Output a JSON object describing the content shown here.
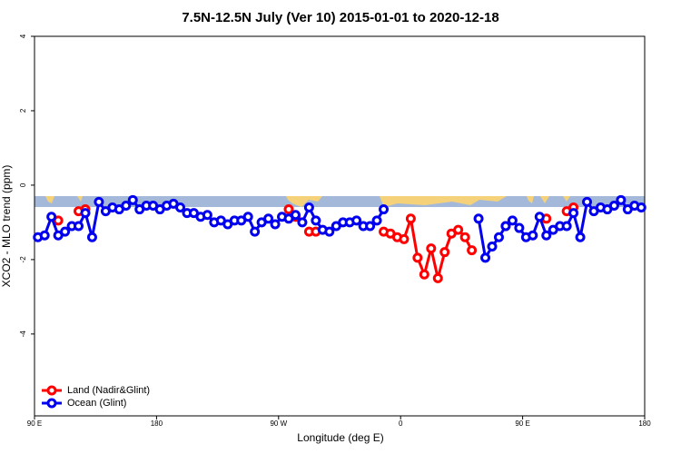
{
  "chart_data": {
    "type": "line",
    "title": "7.5N-12.5N July (Ver 10)   2015-01-01 to 2020-12-18",
    "xlabel": "Longitude (deg E)",
    "ylabel": "XCO2 - MLO trend (ppm)",
    "xlim": [
      90,
      540
    ],
    "xticks": [
      {
        "value": 90,
        "label": "90 E"
      },
      180,
      {
        "value": 270,
        "label": "90 W"
      },
      {
        "value": 360,
        "label": "0"
      },
      {
        "value": 450,
        "label": "90 E"
      },
      {
        "value": 540,
        "label": "180"
      }
    ],
    "ylim": [
      -6.2,
      4
    ],
    "yticks": [
      4,
      2,
      0,
      -2,
      -4
    ],
    "legend": "bottom-left",
    "series": [
      {
        "name": "Land (Nadir&Glint)",
        "color": "#ff0000",
        "x": [
          107.5,
          112.5,
          122.5,
          127.5,
          272.5,
          277.5,
          282.5,
          287.5,
          292.5,
          297.5,
          342.5,
          347.5,
          352.5,
          357.5,
          362.5,
          367.5,
          372.5,
          377.5,
          382.5,
          387.5,
          392.5,
          397.5,
          402.5,
          407.5,
          412.5,
          417.5,
          437.5,
          442.5,
          467.5,
          472.5,
          482.5,
          487.5
        ],
        "values": [
          -0.95,
          null,
          -0.7,
          -0.65,
          null,
          -0.65,
          -0.85,
          null,
          -1.25,
          -1.25,
          null,
          -1.25,
          -1.3,
          -1.4,
          -1.45,
          -0.9,
          -1.95,
          -2.4,
          -1.7,
          -2.5,
          -1.8,
          -1.3,
          -1.2,
          -1.4,
          -1.75,
          null,
          -1.1,
          null,
          -0.9,
          null,
          -0.7,
          -0.6
        ]
      },
      {
        "name": "Ocean (Glint)",
        "color": "#0000ee",
        "x": [
          92.5,
          97.5,
          102.5,
          107.5,
          112.5,
          117.5,
          122.5,
          127.5,
          132.5,
          137.5,
          142.5,
          147.5,
          152.5,
          157.5,
          162.5,
          167.5,
          172.5,
          177.5,
          182.5,
          187.5,
          192.5,
          197.5,
          202.5,
          207.5,
          212.5,
          217.5,
          222.5,
          227.5,
          232.5,
          237.5,
          242.5,
          247.5,
          252.5,
          257.5,
          262.5,
          267.5,
          272.5,
          277.5,
          282.5,
          287.5,
          292.5,
          297.5,
          302.5,
          307.5,
          312.5,
          317.5,
          322.5,
          327.5,
          332.5,
          337.5,
          342.5,
          347.5,
          352.5,
          417.5,
          422.5,
          427.5,
          432.5,
          437.5,
          442.5,
          447.5,
          452.5,
          457.5,
          462.5,
          467.5,
          472.5,
          477.5,
          482.5,
          487.5,
          492.5,
          497.5,
          502.5,
          507.5,
          512.5,
          517.5,
          522.5,
          527.5,
          532.5,
          537.5
        ],
        "values": [
          -1.4,
          -1.35,
          -0.85,
          -1.35,
          -1.25,
          -1.1,
          -1.1,
          -0.75,
          -1.4,
          -0.45,
          -0.7,
          -0.6,
          -0.65,
          -0.55,
          -0.4,
          -0.65,
          -0.55,
          -0.55,
          -0.65,
          -0.55,
          -0.5,
          -0.6,
          -0.75,
          -0.75,
          -0.85,
          -0.8,
          -1.0,
          -0.95,
          -1.05,
          -0.95,
          -0.95,
          -0.85,
          -1.25,
          -1.0,
          -0.9,
          -1.05,
          -0.85,
          -0.9,
          -0.8,
          -1.0,
          -0.6,
          -0.95,
          -1.2,
          -1.25,
          -1.1,
          -1.0,
          -1.0,
          -0.95,
          -1.1,
          -1.1,
          -0.95,
          -0.65,
          null,
          -0.9,
          -1.95,
          -1.65,
          -1.4,
          -1.1,
          -0.95,
          -1.15,
          -1.4,
          -1.35,
          -0.85,
          -1.35,
          -1.2,
          -1.1,
          -1.1,
          -0.75,
          -1.4,
          -0.45,
          -0.7,
          -0.6,
          -0.65,
          -0.55,
          -0.4,
          -0.65,
          -0.55,
          -0.6
        ]
      }
    ]
  }
}
